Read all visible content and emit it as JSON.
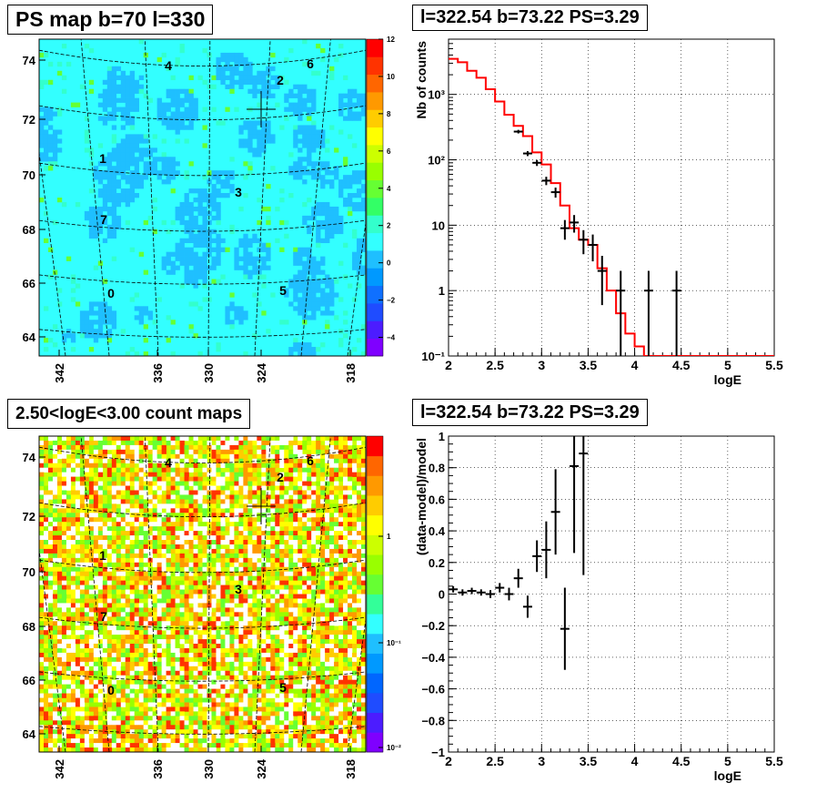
{
  "panels": {
    "ps_map_title": "PS map b=70 l=330",
    "counts_map_title": "2.50<logE<3.00 count maps",
    "spectrum_title": "l=322.54 b=73.22 PS=3.29",
    "residual_title": "l=322.54 b=73.22 PS=3.29"
  },
  "colors": {
    "data": "#000000",
    "model": "#ff0000",
    "grid": "#000000",
    "ps_map_background": "#33ffff"
  },
  "chart_data": [
    {
      "type": "heatmap",
      "title": "PS map b=70 l=330",
      "x_ticks": [
        "342",
        "336",
        "330",
        "324",
        "318"
      ],
      "y_ticks": [
        "64",
        "66",
        "68",
        "70",
        "72",
        "74"
      ],
      "colorbar_ticks": [
        "12",
        "10",
        "8",
        "6",
        "4",
        "2",
        "0",
        "−2",
        "−4"
      ],
      "colorbar_range": [
        -5,
        12
      ],
      "source_labels": [
        "4",
        "2",
        "6",
        "1",
        "3",
        "7",
        "0",
        "5"
      ],
      "cross_marker": "l=322.54 b=73.22"
    },
    {
      "type": "heatmap",
      "title": "2.50<logE<3.00 count maps",
      "x_ticks": [
        "342",
        "336",
        "330",
        "324",
        "318"
      ],
      "y_ticks": [
        "64",
        "66",
        "68",
        "70",
        "72",
        "74"
      ],
      "colorbar_ticks": [
        "1",
        "10⁻¹",
        "10⁻²"
      ],
      "colorbar_scale": "log",
      "source_labels": [
        "4",
        "2",
        "6",
        "1",
        "3",
        "7",
        "0",
        "5"
      ],
      "cross_marker": "l=322.54 b=73.22"
    },
    {
      "type": "line",
      "title": "l=322.54 b=73.22 PS=3.29",
      "xlabel": "logE",
      "ylabel": "Nb of counts",
      "xlim": [
        2,
        5.5
      ],
      "ylim": [
        0.1,
        7000
      ],
      "yscale": "log",
      "grid": true,
      "x_ticks": [
        "2",
        "2.5",
        "3",
        "3.5",
        "4",
        "4.5",
        "5",
        "5.5"
      ],
      "y_ticks": [
        "10⁻¹",
        "1",
        "10",
        "10²",
        "10³"
      ],
      "series": [
        {
          "kind": "data",
          "x": [
            2.75,
            2.85,
            2.95,
            3.05,
            3.15,
            3.25,
            3.35,
            3.45,
            3.55,
            3.65,
            3.85,
            4.15,
            4.45
          ],
          "y": [
            270,
            125,
            90,
            48,
            32,
            9,
            11,
            6,
            5,
            2,
            1,
            1,
            1
          ],
          "err": [
            17,
            11,
            9.5,
            7,
            5.6,
            3,
            3.3,
            2.4,
            2.2,
            1.4,
            1,
            1,
            1
          ]
        },
        {
          "kind": "model",
          "edges": [
            2.0,
            2.1,
            2.2,
            2.3,
            2.4,
            2.5,
            2.6,
            2.7,
            2.8,
            2.9,
            3.0,
            3.1,
            3.2,
            3.3,
            3.4,
            3.5,
            3.6,
            3.7,
            3.8,
            3.9,
            4.0,
            4.1,
            4.2,
            4.3,
            4.4,
            4.5,
            4.6,
            4.7,
            4.8,
            4.9,
            5.0,
            5.1,
            5.2,
            5.3,
            5.4,
            5.5
          ],
          "values": [
            3500,
            3100,
            2300,
            1800,
            1200,
            780,
            490,
            330,
            230,
            130,
            85,
            44,
            20,
            9,
            6,
            5,
            2.2,
            1,
            0.45,
            0.22,
            0.14,
            0.1,
            0.1,
            0.1,
            0.1,
            0.1,
            0.1,
            0.1,
            0.1,
            0.1,
            0.1,
            0.1,
            0.1,
            0.1,
            0.1
          ]
        }
      ]
    },
    {
      "type": "scatter",
      "title": "l=322.54 b=73.22 PS=3.29",
      "xlabel": "logE",
      "ylabel": "(data-model)/model",
      "xlim": [
        2,
        5.5
      ],
      "ylim": [
        -1,
        1
      ],
      "grid": true,
      "x_ticks": [
        "2",
        "2.5",
        "3",
        "3.5",
        "4",
        "4.5",
        "5",
        "5.5"
      ],
      "y_ticks": [
        "−1",
        "−0.8",
        "−0.6",
        "−0.4",
        "−0.2",
        "0",
        "0.2",
        "0.4",
        "0.6",
        "0.8",
        "1"
      ],
      "series": [
        {
          "kind": "data",
          "x": [
            2.05,
            2.15,
            2.25,
            2.35,
            2.45,
            2.55,
            2.65,
            2.75,
            2.85,
            2.95,
            3.05,
            3.15,
            3.25,
            3.35,
            3.45
          ],
          "y": [
            0.03,
            0.01,
            0.02,
            0.01,
            0.0,
            0.04,
            0.0,
            0.1,
            -0.08,
            0.24,
            0.28,
            0.52,
            -0.22,
            0.81,
            0.89
          ],
          "err": [
            0.02,
            0.02,
            0.02,
            0.02,
            0.025,
            0.03,
            0.04,
            0.06,
            0.07,
            0.1,
            0.18,
            0.27,
            0.26,
            0.55,
            0.77
          ]
        }
      ]
    }
  ]
}
